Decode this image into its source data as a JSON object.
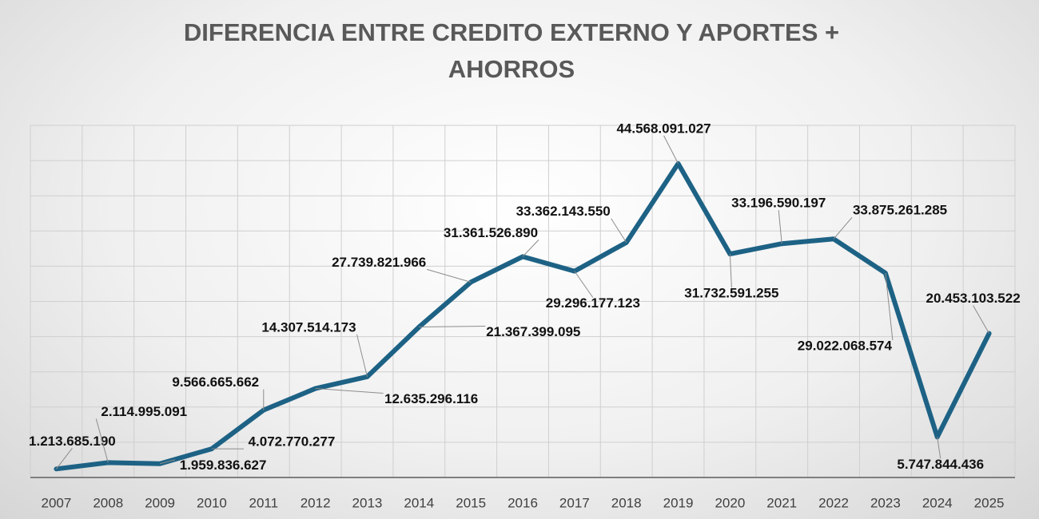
{
  "chart_data": {
    "type": "line",
    "title": "DIFERENCIA ENTRE CREDITO EXTERNO Y APORTES + AHORROS",
    "categories": [
      "2007",
      "2008",
      "2009",
      "2010",
      "2011",
      "2012",
      "2013",
      "2014",
      "2015",
      "2016",
      "2017",
      "2018",
      "2019",
      "2020",
      "2021",
      "2022",
      "2023",
      "2024",
      "2025"
    ],
    "series": [
      {
        "color": "#1d6285",
        "values": [
          1213685190,
          2114995091,
          1959836627,
          4072770277,
          9566665662,
          12635296116,
          14307514173,
          21367399095,
          27739821966,
          31361526890,
          29296177123,
          33362143550,
          44568091027,
          31732591255,
          33196590197,
          33875261285,
          29022068574,
          5747844436,
          20453103522
        ],
        "value_labels": [
          "1.213.685.190",
          "2.114.995.091",
          "1.959.836.627",
          "4.072.770.277",
          "9.566.665.662",
          "12.635.296.116",
          "14.307.514.173",
          "21.367.399.095",
          "27.739.821.966",
          "31.361.526.890",
          "29.296.177.123",
          "33.362.143.550",
          "44.568.091.027",
          "31.732.591.255",
          "33.196.590.197",
          "33.875.261.285",
          "29.022.068.574",
          "5.747.844.436",
          "20.453.103.522"
        ]
      }
    ],
    "ylim": [
      0,
      50000000000
    ],
    "yticks": [
      0,
      5000000000,
      10000000000,
      15000000000,
      20000000000,
      25000000000,
      30000000000,
      35000000000,
      40000000000,
      45000000000,
      50000000000
    ],
    "grid": true
  }
}
